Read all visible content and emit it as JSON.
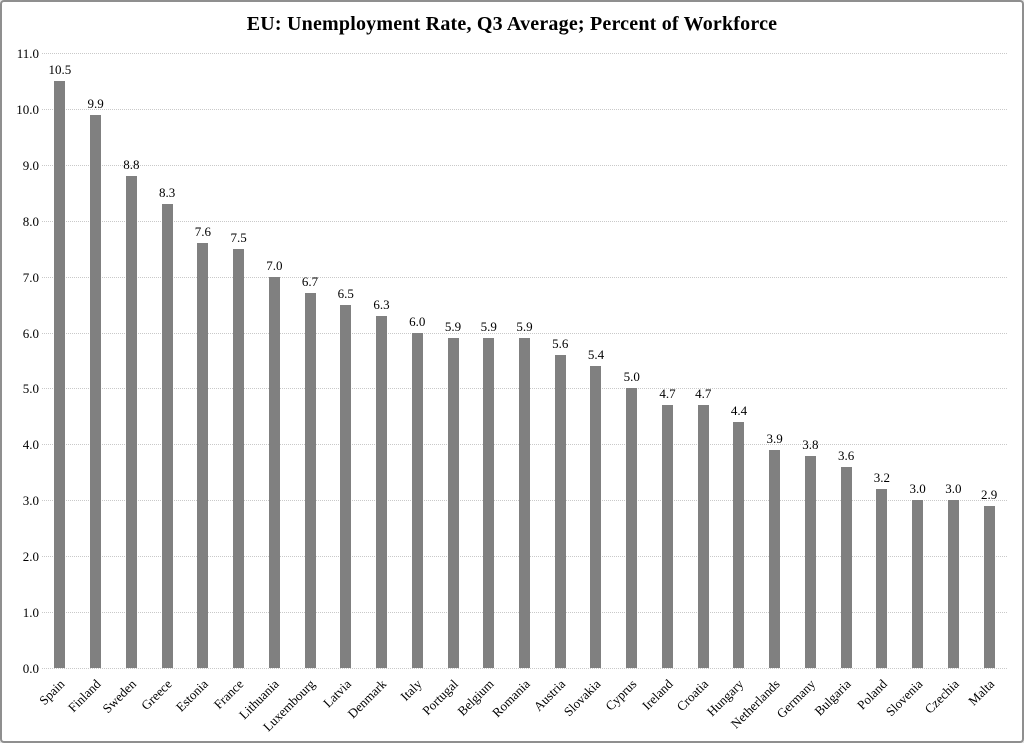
{
  "chart_data": {
    "type": "bar",
    "title": "EU: Unemployment Rate, Q3 Average; Percent of Workforce",
    "xlabel": "",
    "ylabel": "",
    "categories": [
      "Spain",
      "Finland",
      "Sweden",
      "Greece",
      "Estonia",
      "France",
      "Lithuania",
      "Luxembourg",
      "Latvia",
      "Denmark",
      "Italy",
      "Portugal",
      "Belgium",
      "Romania",
      "Austria",
      "Slovakia",
      "Cyprus",
      "Ireland",
      "Croatia",
      "Hungary",
      "Netherlands",
      "Germany",
      "Bulgaria",
      "Poland",
      "Slovenia",
      "Czechia",
      "Malta"
    ],
    "values": [
      10.5,
      9.9,
      8.8,
      8.3,
      7.6,
      7.5,
      7.0,
      6.7,
      6.5,
      6.3,
      6.0,
      5.9,
      5.9,
      5.9,
      5.6,
      5.4,
      5.0,
      4.7,
      4.7,
      4.4,
      3.9,
      3.8,
      3.6,
      3.2,
      3.0,
      3.0,
      2.9
    ],
    "value_labels_shown": true,
    "ylim": [
      0,
      11
    ],
    "ytick_step": 1,
    "ytick_labels": [
      "0.0",
      "1.0",
      "2.0",
      "3.0",
      "4.0",
      "5.0",
      "6.0",
      "7.0",
      "8.0",
      "9.0",
      "10.0",
      "11.0"
    ],
    "grid": "horizontal-dotted",
    "legend": "none",
    "bar_color": "#808080",
    "gridline_color": "#c9c9c9",
    "text_color": "#000000",
    "background_color": "#ffffff",
    "frame_color": "#8f8f8f"
  }
}
